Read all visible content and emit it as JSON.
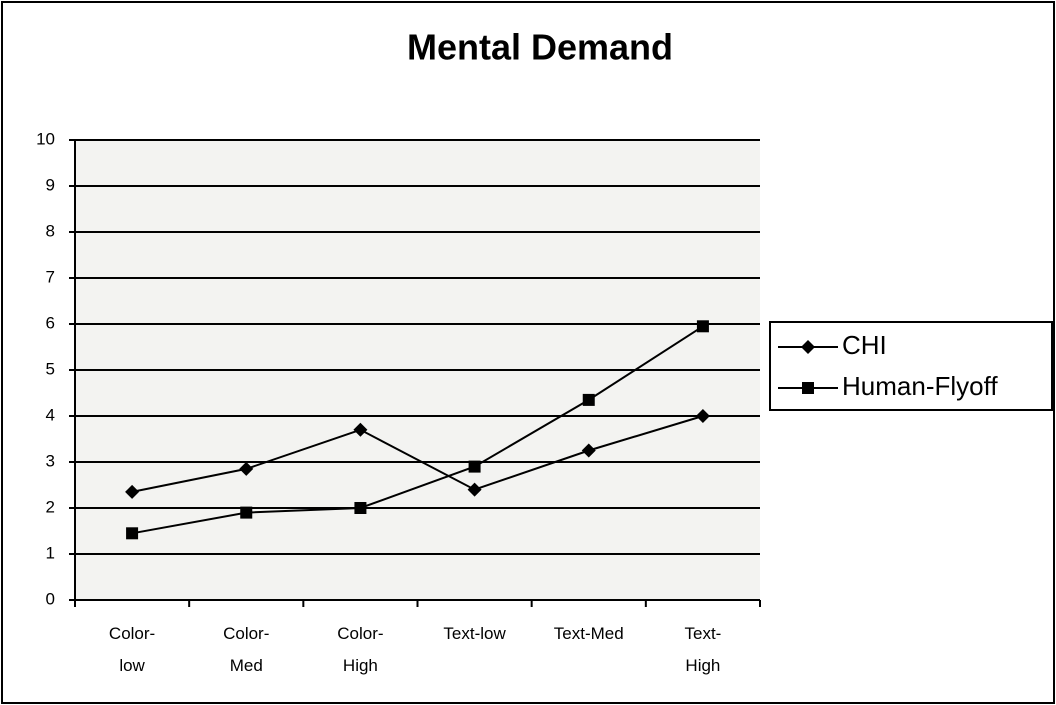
{
  "chart_data": {
    "type": "line",
    "title": "Mental Demand",
    "categories": [
      "Color-\nlow",
      "Color-\nMed",
      "Color-\nHigh",
      "Text-low",
      "Text-Med",
      "Text-\nHigh"
    ],
    "series": [
      {
        "name": "CHI",
        "color": "#000000",
        "marker": "diamond",
        "values": [
          2.35,
          2.85,
          3.7,
          2.4,
          3.25,
          4.0
        ]
      },
      {
        "name": "Human-Flyoff",
        "color": "#000000",
        "marker": "square",
        "values": [
          1.45,
          1.9,
          2.0,
          2.9,
          4.35,
          5.95
        ]
      }
    ],
    "ylim": [
      0,
      10
    ],
    "yticks": [
      0,
      1,
      2,
      3,
      4,
      5,
      6,
      7,
      8,
      9,
      10
    ],
    "grid": true,
    "legend": "right"
  }
}
